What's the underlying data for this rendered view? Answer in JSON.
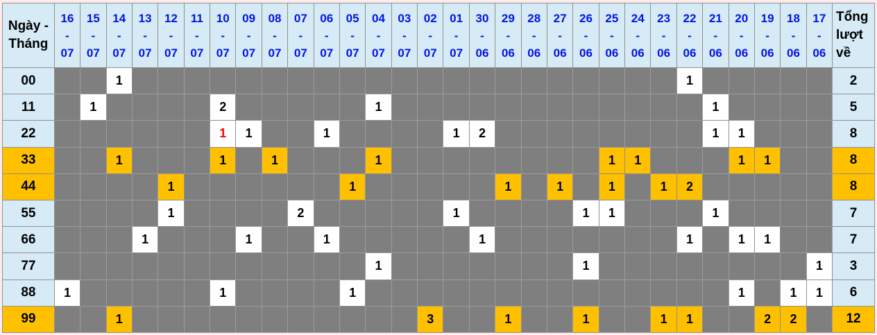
{
  "table": {
    "corner_label_lines": [
      "Ngày -",
      "Tháng"
    ],
    "total_label_lines": [
      "Tổng",
      "lượt",
      "về"
    ],
    "date_separator": "-",
    "columns": [
      {
        "day": "16",
        "month": "07"
      },
      {
        "day": "15",
        "month": "07"
      },
      {
        "day": "14",
        "month": "07"
      },
      {
        "day": "13",
        "month": "07"
      },
      {
        "day": "12",
        "month": "07"
      },
      {
        "day": "11",
        "month": "07"
      },
      {
        "day": "10",
        "month": "07"
      },
      {
        "day": "09",
        "month": "07"
      },
      {
        "day": "08",
        "month": "07"
      },
      {
        "day": "07",
        "month": "07"
      },
      {
        "day": "06",
        "month": "07"
      },
      {
        "day": "05",
        "month": "07"
      },
      {
        "day": "04",
        "month": "07"
      },
      {
        "day": "03",
        "month": "07"
      },
      {
        "day": "02",
        "month": "07"
      },
      {
        "day": "01",
        "month": "07"
      },
      {
        "day": "30",
        "month": "06"
      },
      {
        "day": "29",
        "month": "06"
      },
      {
        "day": "28",
        "month": "06"
      },
      {
        "day": "27",
        "month": "06"
      },
      {
        "day": "26",
        "month": "06"
      },
      {
        "day": "25",
        "month": "06"
      },
      {
        "day": "24",
        "month": "06"
      },
      {
        "day": "23",
        "month": "06"
      },
      {
        "day": "22",
        "month": "06"
      },
      {
        "day": "21",
        "month": "06"
      },
      {
        "day": "20",
        "month": "06"
      },
      {
        "day": "19",
        "month": "06"
      },
      {
        "day": "18",
        "month": "06"
      },
      {
        "day": "17",
        "month": "06"
      }
    ],
    "rows": [
      {
        "label": "00",
        "highlight": false,
        "total": 2,
        "cells": [
          0,
          0,
          1,
          0,
          0,
          0,
          0,
          0,
          0,
          0,
          0,
          0,
          0,
          0,
          0,
          0,
          0,
          0,
          0,
          0,
          0,
          0,
          0,
          0,
          1,
          0,
          0,
          0,
          0,
          0
        ]
      },
      {
        "label": "11",
        "highlight": false,
        "total": 5,
        "cells": [
          0,
          1,
          0,
          0,
          0,
          0,
          2,
          0,
          0,
          0,
          0,
          0,
          1,
          0,
          0,
          0,
          0,
          0,
          0,
          0,
          0,
          0,
          0,
          0,
          0,
          1,
          0,
          0,
          0,
          0
        ]
      },
      {
        "label": "22",
        "highlight": false,
        "total": 8,
        "cells": [
          0,
          0,
          0,
          0,
          0,
          0,
          1,
          1,
          0,
          0,
          1,
          0,
          0,
          0,
          0,
          1,
          2,
          0,
          0,
          0,
          0,
          0,
          0,
          0,
          0,
          1,
          1,
          0,
          0,
          0
        ]
      },
      {
        "label": "33",
        "highlight": true,
        "total": 8,
        "cells": [
          0,
          0,
          1,
          0,
          0,
          0,
          1,
          0,
          1,
          0,
          0,
          0,
          1,
          0,
          0,
          0,
          0,
          0,
          0,
          0,
          0,
          1,
          1,
          0,
          0,
          0,
          1,
          1,
          0,
          0
        ]
      },
      {
        "label": "44",
        "highlight": true,
        "total": 8,
        "cells": [
          0,
          0,
          0,
          0,
          1,
          0,
          0,
          0,
          0,
          0,
          0,
          1,
          0,
          0,
          0,
          0,
          0,
          1,
          0,
          1,
          0,
          1,
          0,
          1,
          2,
          0,
          0,
          0,
          0,
          0
        ]
      },
      {
        "label": "55",
        "highlight": false,
        "total": 7,
        "cells": [
          0,
          0,
          0,
          0,
          1,
          0,
          0,
          0,
          0,
          2,
          0,
          0,
          0,
          0,
          0,
          1,
          0,
          0,
          0,
          0,
          1,
          1,
          0,
          0,
          0,
          1,
          0,
          0,
          0,
          0
        ]
      },
      {
        "label": "66",
        "highlight": false,
        "total": 7,
        "cells": [
          0,
          0,
          0,
          1,
          0,
          0,
          0,
          1,
          0,
          0,
          1,
          0,
          0,
          0,
          0,
          0,
          1,
          0,
          0,
          0,
          0,
          0,
          0,
          0,
          1,
          0,
          1,
          1,
          0,
          0
        ]
      },
      {
        "label": "77",
        "highlight": false,
        "total": 3,
        "cells": [
          0,
          0,
          0,
          0,
          0,
          0,
          0,
          0,
          0,
          0,
          0,
          0,
          1,
          0,
          0,
          0,
          0,
          0,
          0,
          0,
          1,
          0,
          0,
          0,
          0,
          0,
          0,
          0,
          0,
          1
        ]
      },
      {
        "label": "88",
        "highlight": false,
        "total": 6,
        "cells": [
          1,
          0,
          0,
          0,
          0,
          0,
          1,
          0,
          0,
          0,
          0,
          1,
          0,
          0,
          0,
          0,
          0,
          0,
          0,
          0,
          0,
          0,
          0,
          0,
          0,
          0,
          1,
          0,
          1,
          1
        ]
      },
      {
        "label": "99",
        "highlight": true,
        "total": 12,
        "cells": [
          0,
          0,
          1,
          0,
          0,
          0,
          0,
          0,
          0,
          0,
          0,
          0,
          0,
          0,
          3,
          0,
          0,
          1,
          0,
          0,
          1,
          0,
          0,
          1,
          1,
          0,
          0,
          2,
          2,
          0
        ]
      }
    ],
    "red_cells": [
      {
        "row": 2,
        "col": 6
      }
    ],
    "colors": {
      "header_bg": "#d7ebf6",
      "header_text_blue": "#0014e6",
      "empty_cell": "#7f7f7f",
      "value_bg": "#ffffff",
      "highlight_orange": "#ffc000",
      "red_value": "#ff0000",
      "page_bg": "#fdecec"
    }
  }
}
